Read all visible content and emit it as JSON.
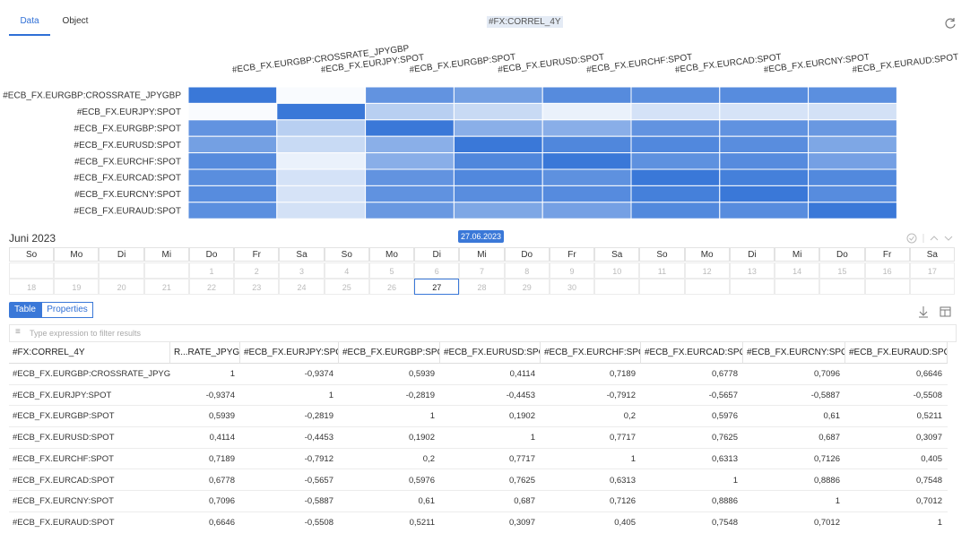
{
  "tabs": [
    "Data",
    "Object"
  ],
  "title": "#FX:CORREL_4Y",
  "heatmap": {
    "type": "heatmap",
    "columns": [
      "#ECB_FX.EURGBP:CROSSRATE_JPYGBP",
      "#ECB_FX.EURJPY:SPOT",
      "#ECB_FX.EURGBP:SPOT",
      "#ECB_FX.EURUSD:SPOT",
      "#ECB_FX.EURCHF:SPOT",
      "#ECB_FX.EURCAD:SPOT",
      "#ECB_FX.EURCNY:SPOT",
      "#ECB_FX.EURAUD:SPOT"
    ],
    "rows": [
      "#ECB_FX.EURGBP:CROSSRATE_JPYGBP",
      "#ECB_FX.EURJPY:SPOT",
      "#ECB_FX.EURGBP:SPOT",
      "#ECB_FX.EURUSD:SPOT",
      "#ECB_FX.EURCHF:SPOT",
      "#ECB_FX.EURCAD:SPOT",
      "#ECB_FX.EURCNY:SPOT",
      "#ECB_FX.EURAUD:SPOT"
    ],
    "values": [
      [
        1,
        -0.9374,
        0.5939,
        0.4114,
        0.7189,
        0.6778,
        0.7096,
        0.6646
      ],
      [
        -0.9374,
        1,
        -0.2819,
        -0.4453,
        -0.7912,
        -0.5657,
        -0.5887,
        -0.5508
      ],
      [
        0.5939,
        -0.2819,
        1,
        0.1902,
        0.2,
        0.5976,
        0.61,
        0.5211
      ],
      [
        0.4114,
        -0.4453,
        0.1902,
        1,
        0.7717,
        0.7625,
        0.687,
        0.3097
      ],
      [
        0.7189,
        -0.7912,
        0.2,
        0.7717,
        1,
        0.6313,
        0.7126,
        0.405
      ],
      [
        0.6778,
        -0.5657,
        0.5976,
        0.7625,
        0.6313,
        1,
        0.8886,
        0.7548
      ],
      [
        0.7096,
        -0.5887,
        0.61,
        0.687,
        0.7126,
        0.8886,
        1,
        0.7012
      ],
      [
        0.6646,
        -0.5508,
        0.5211,
        0.3097,
        0.405,
        0.7548,
        0.7012,
        1
      ]
    ]
  },
  "calendar": {
    "month": "Juni 2023",
    "selected": "27.06.2023",
    "weekdays": [
      "So",
      "Mo",
      "Di",
      "Mi",
      "Do",
      "Fr",
      "Sa",
      "So",
      "Mo",
      "Di",
      "Mi",
      "Do",
      "Fr",
      "Sa",
      "So",
      "Mo",
      "Di",
      "Mi",
      "Do",
      "Fr",
      "Sa"
    ],
    "weeks": [
      [
        null,
        null,
        null,
        null,
        1,
        2,
        3,
        4,
        5,
        6,
        7,
        8,
        9,
        10,
        11,
        12,
        13,
        14,
        15,
        16,
        17
      ],
      [
        18,
        19,
        20,
        21,
        22,
        23,
        24,
        25,
        26,
        27,
        28,
        29,
        30,
        null,
        null,
        null,
        null,
        null,
        null,
        null,
        null
      ]
    ],
    "today": 27
  },
  "table_tabs": [
    "Table",
    "Properties"
  ],
  "filter_placeholder": "Type expression to filter results",
  "table": {
    "headers": [
      "#FX:CORREL_4Y",
      "R...RATE_JPYGBP",
      "#ECB_FX.EURJPY:SPOT",
      "#ECB_FX.EURGBP:SPOT",
      "#ECB_FX.EURUSD:SPOT",
      "#ECB_FX.EURCHF:SPOT",
      "#ECB_FX.EURCAD:SPOT",
      "#ECB_FX.EURCNY:SPOT",
      "#ECB_FX.EURAUD:SPOT"
    ],
    "rows": [
      [
        "#ECB_FX.EURGBP:CROSSRATE_JPYGBP",
        "1",
        "-0,9374",
        "0,5939",
        "0,4114",
        "0,7189",
        "0,6778",
        "0,7096",
        "0,6646"
      ],
      [
        "#ECB_FX.EURJPY:SPOT",
        "-0,9374",
        "1",
        "-0,2819",
        "-0,4453",
        "-0,7912",
        "-0,5657",
        "-0,5887",
        "-0,5508"
      ],
      [
        "#ECB_FX.EURGBP:SPOT",
        "0,5939",
        "-0,2819",
        "1",
        "0,1902",
        "0,2",
        "0,5976",
        "0,61",
        "0,5211"
      ],
      [
        "#ECB_FX.EURUSD:SPOT",
        "0,4114",
        "-0,4453",
        "0,1902",
        "1",
        "0,7717",
        "0,7625",
        "0,687",
        "0,3097"
      ],
      [
        "#ECB_FX.EURCHF:SPOT",
        "0,7189",
        "-0,7912",
        "0,2",
        "0,7717",
        "1",
        "0,6313",
        "0,7126",
        "0,405"
      ],
      [
        "#ECB_FX.EURCAD:SPOT",
        "0,6778",
        "-0,5657",
        "0,5976",
        "0,7625",
        "0,6313",
        "1",
        "0,8886",
        "0,7548"
      ],
      [
        "#ECB_FX.EURCNY:SPOT",
        "0,7096",
        "-0,5887",
        "0,61",
        "0,687",
        "0,7126",
        "0,8886",
        "1",
        "0,7012"
      ],
      [
        "#ECB_FX.EURAUD:SPOT",
        "0,6646",
        "-0,5508",
        "0,5211",
        "0,3097",
        "0,405",
        "0,7548",
        "0,7012",
        "1"
      ]
    ]
  }
}
